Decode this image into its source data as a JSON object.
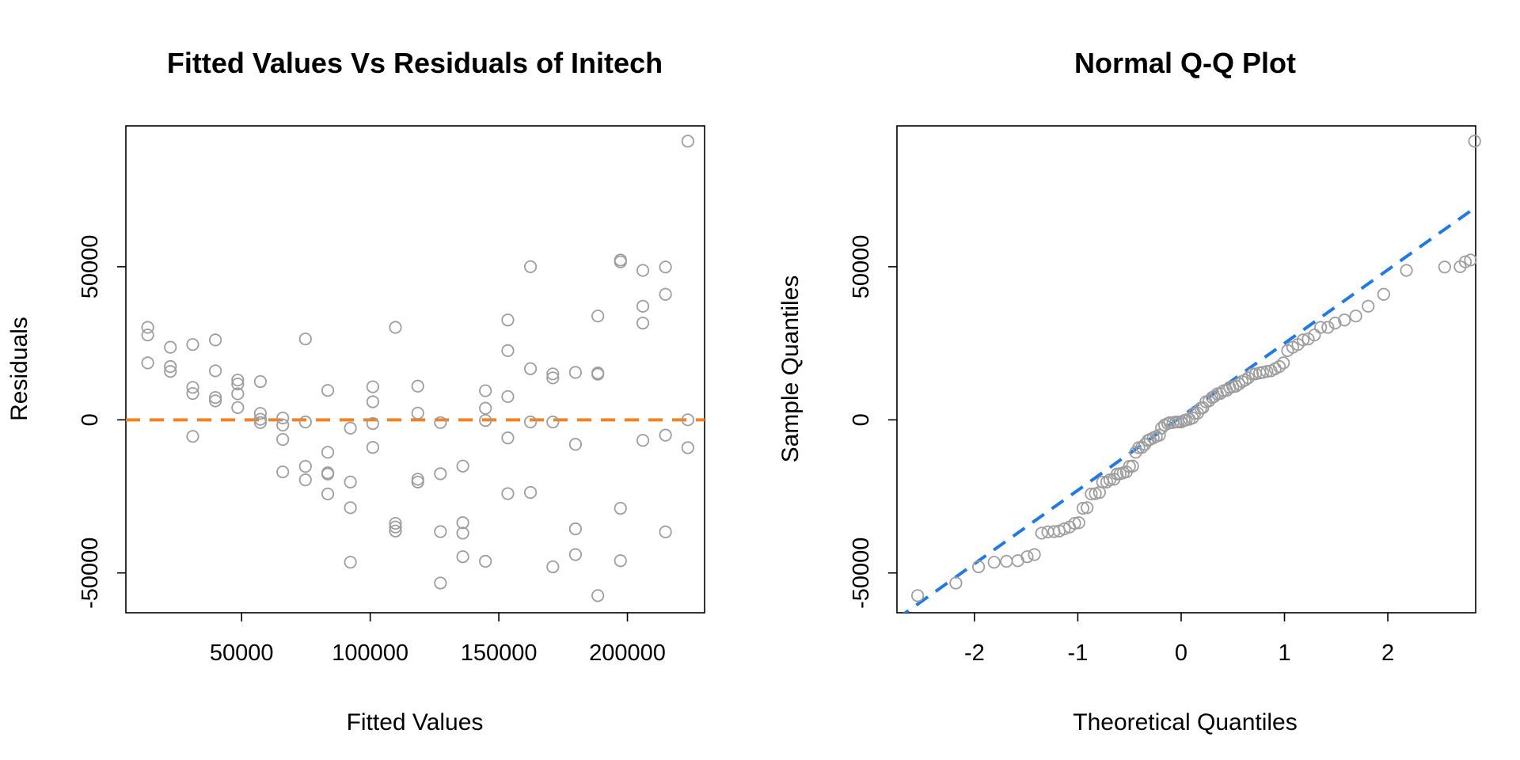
{
  "colors": {
    "point_stroke": "#9e9e9e",
    "refline_left": "#f5821f",
    "refline_right": "#1f7ae8",
    "axis": "#000000"
  },
  "chart_data": [
    {
      "type": "scatter",
      "title": "Fitted Values Vs Residuals of Initech",
      "xlabel": "Fitted Values",
      "ylabel": "Residuals",
      "xlim": [
        5000,
        230000
      ],
      "ylim": [
        -63000,
        96000
      ],
      "xticks": [
        50000,
        100000,
        150000,
        200000
      ],
      "xtick_labels": [
        "50000",
        "100000",
        "150000",
        "200000"
      ],
      "yticks": [
        -50000,
        0,
        50000
      ],
      "ytick_labels": [
        "-50000",
        "0",
        "50000"
      ],
      "reference_line": {
        "kind": "horizontal",
        "y": 0,
        "style": "dashed",
        "color": "#f5821f"
      },
      "points": [
        [
          13500,
          30200
        ],
        [
          13500,
          27700
        ],
        [
          13500,
          18600
        ],
        [
          22300,
          23700
        ],
        [
          22300,
          17400
        ],
        [
          22300,
          15800
        ],
        [
          31000,
          24600
        ],
        [
          31000,
          10600
        ],
        [
          31000,
          8600
        ],
        [
          31000,
          -5400
        ],
        [
          39800,
          26100
        ],
        [
          39800,
          16000
        ],
        [
          39800,
          7300
        ],
        [
          39800,
          6200
        ],
        [
          48500,
          13000
        ],
        [
          48500,
          11700
        ],
        [
          48500,
          8500
        ],
        [
          48500,
          4000
        ],
        [
          57300,
          12500
        ],
        [
          57300,
          2100
        ],
        [
          57300,
          200
        ],
        [
          57300,
          -900
        ],
        [
          66000,
          600
        ],
        [
          66000,
          -1700
        ],
        [
          66000,
          -6400
        ],
        [
          66000,
          -17000
        ],
        [
          74800,
          26400
        ],
        [
          74800,
          -700
        ],
        [
          74800,
          -15200
        ],
        [
          74800,
          -19600
        ],
        [
          83500,
          9600
        ],
        [
          83500,
          -10600
        ],
        [
          83500,
          -17300
        ],
        [
          83500,
          -17700
        ],
        [
          83500,
          -24200
        ],
        [
          92300,
          -2700
        ],
        [
          92300,
          -20300
        ],
        [
          92300,
          -28700
        ],
        [
          92300,
          -46500
        ],
        [
          101000,
          10800
        ],
        [
          101000,
          5900
        ],
        [
          101000,
          -1200
        ],
        [
          101000,
          -9000
        ],
        [
          109800,
          30200
        ],
        [
          109800,
          -33800
        ],
        [
          109800,
          -35000
        ],
        [
          109800,
          -36300
        ],
        [
          118500,
          11000
        ],
        [
          118500,
          2200
        ],
        [
          118500,
          -19400
        ],
        [
          118500,
          -20300
        ],
        [
          127300,
          -900
        ],
        [
          127300,
          -17600
        ],
        [
          127300,
          -36500
        ],
        [
          127300,
          -53300
        ],
        [
          136000,
          -15100
        ],
        [
          136000,
          -33600
        ],
        [
          136000,
          -37000
        ],
        [
          136000,
          -44700
        ],
        [
          144800,
          9500
        ],
        [
          144800,
          3800
        ],
        [
          144800,
          -200
        ],
        [
          144800,
          -46200
        ],
        [
          153500,
          32600
        ],
        [
          153500,
          22600
        ],
        [
          153500,
          7600
        ],
        [
          153500,
          -5900
        ],
        [
          153500,
          -24100
        ],
        [
          162300,
          50000
        ],
        [
          162300,
          16700
        ],
        [
          162300,
          -700
        ],
        [
          162300,
          -23700
        ],
        [
          171000,
          15000
        ],
        [
          171000,
          13700
        ],
        [
          171000,
          -700
        ],
        [
          171000,
          -48000
        ],
        [
          179800,
          15500
        ],
        [
          179800,
          -8000
        ],
        [
          179800,
          -35600
        ],
        [
          179800,
          -44000
        ],
        [
          188500,
          33900
        ],
        [
          188500,
          15300
        ],
        [
          188500,
          14900
        ],
        [
          188500,
          -57400
        ],
        [
          197300,
          52200
        ],
        [
          197300,
          51600
        ],
        [
          197300,
          -28900
        ],
        [
          197300,
          -46000
        ],
        [
          206000,
          48800
        ],
        [
          206000,
          37100
        ],
        [
          206000,
          31600
        ],
        [
          206000,
          -6700
        ],
        [
          214800,
          49900
        ],
        [
          214800,
          41000
        ],
        [
          214800,
          -5000
        ],
        [
          214800,
          -36600
        ],
        [
          223500,
          91000
        ],
        [
          223500,
          0
        ],
        [
          223500,
          -9100
        ]
      ]
    },
    {
      "type": "scatter",
      "title": "Normal Q-Q Plot",
      "xlabel": "Theoretical Quantiles",
      "ylabel": "Sample Quantiles",
      "xlim": [
        -2.75,
        2.85
      ],
      "ylim": [
        -63000,
        96000
      ],
      "xticks": [
        -2,
        -1,
        0,
        1,
        2
      ],
      "xtick_labels": [
        "-2",
        "-1",
        "0",
        "1",
        "2"
      ],
      "yticks": [
        -50000,
        0,
        50000
      ],
      "ytick_labels": [
        "-50000",
        "0",
        "50000"
      ],
      "reference_line": {
        "kind": "qqline",
        "slope": 24000,
        "intercept": 1000,
        "style": "dashed",
        "color": "#1f7ae8"
      },
      "points": [
        [
          -2.55,
          -57400
        ],
        [
          -2.18,
          -53300
        ],
        [
          -1.96,
          -48000
        ],
        [
          -1.81,
          -46500
        ],
        [
          -1.69,
          -46200
        ],
        [
          -1.58,
          -46000
        ],
        [
          -1.49,
          -44700
        ],
        [
          -1.42,
          -44000
        ],
        [
          -1.35,
          -37000
        ],
        [
          -1.29,
          -36600
        ],
        [
          -1.23,
          -36500
        ],
        [
          -1.18,
          -36300
        ],
        [
          -1.13,
          -35600
        ],
        [
          -1.08,
          -35000
        ],
        [
          -1.03,
          -33800
        ],
        [
          -0.99,
          -33600
        ],
        [
          -0.95,
          -28900
        ],
        [
          -0.91,
          -28700
        ],
        [
          -0.87,
          -24200
        ],
        [
          -0.83,
          -24100
        ],
        [
          -0.79,
          -23700
        ],
        [
          -0.76,
          -20300
        ],
        [
          -0.72,
          -20300
        ],
        [
          -0.69,
          -19600
        ],
        [
          -0.65,
          -19400
        ],
        [
          -0.62,
          -17700
        ],
        [
          -0.59,
          -17600
        ],
        [
          -0.56,
          -17300
        ],
        [
          -0.53,
          -17000
        ],
        [
          -0.5,
          -15200
        ],
        [
          -0.47,
          -15100
        ],
        [
          -0.44,
          -10600
        ],
        [
          -0.41,
          -9100
        ],
        [
          -0.38,
          -9000
        ],
        [
          -0.35,
          -8000
        ],
        [
          -0.32,
          -6700
        ],
        [
          -0.3,
          -6400
        ],
        [
          -0.27,
          -5900
        ],
        [
          -0.24,
          -5400
        ],
        [
          -0.21,
          -5000
        ],
        [
          -0.19,
          -2700
        ],
        [
          -0.16,
          -1700
        ],
        [
          -0.13,
          -1200
        ],
        [
          -0.11,
          -900
        ],
        [
          -0.08,
          -900
        ],
        [
          -0.05,
          -700
        ],
        [
          -0.03,
          -700
        ],
        [
          0.0,
          -700
        ],
        [
          0.03,
          -200
        ],
        [
          0.05,
          0
        ],
        [
          0.08,
          200
        ],
        [
          0.11,
          600
        ],
        [
          0.13,
          2100
        ],
        [
          0.16,
          2200
        ],
        [
          0.19,
          3800
        ],
        [
          0.21,
          4000
        ],
        [
          0.24,
          5900
        ],
        [
          0.27,
          6200
        ],
        [
          0.3,
          7300
        ],
        [
          0.32,
          7600
        ],
        [
          0.35,
          8500
        ],
        [
          0.38,
          8600
        ],
        [
          0.41,
          9500
        ],
        [
          0.44,
          9600
        ],
        [
          0.47,
          10600
        ],
        [
          0.5,
          10800
        ],
        [
          0.53,
          11000
        ],
        [
          0.56,
          11700
        ],
        [
          0.59,
          12500
        ],
        [
          0.62,
          13000
        ],
        [
          0.65,
          13700
        ],
        [
          0.69,
          14900
        ],
        [
          0.72,
          15000
        ],
        [
          0.76,
          15300
        ],
        [
          0.79,
          15500
        ],
        [
          0.83,
          15800
        ],
        [
          0.87,
          16000
        ],
        [
          0.91,
          16700
        ],
        [
          0.95,
          17400
        ],
        [
          0.99,
          18600
        ],
        [
          1.03,
          22600
        ],
        [
          1.08,
          23700
        ],
        [
          1.13,
          24600
        ],
        [
          1.18,
          26100
        ],
        [
          1.23,
          26400
        ],
        [
          1.29,
          27700
        ],
        [
          1.35,
          30200
        ],
        [
          1.42,
          30200
        ],
        [
          1.49,
          31600
        ],
        [
          1.58,
          32600
        ],
        [
          1.69,
          33900
        ],
        [
          1.81,
          37100
        ],
        [
          1.96,
          41000
        ],
        [
          2.18,
          48800
        ],
        [
          2.55,
          49900
        ],
        [
          2.7,
          50000
        ],
        [
          2.75,
          51600
        ],
        [
          2.8,
          52200
        ],
        [
          2.84,
          91000
        ]
      ]
    }
  ]
}
